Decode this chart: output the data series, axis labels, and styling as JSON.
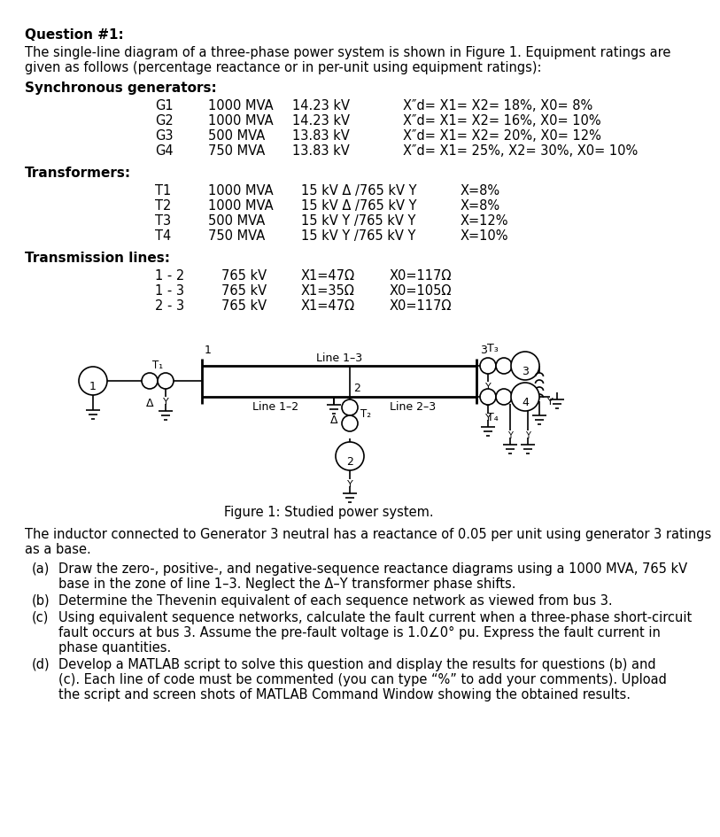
{
  "title": "Question #1:",
  "intro_line1": "The single-line diagram of a three-phase power system is shown in Figure 1. Equipment ratings are",
  "intro_line2": "given as follows (percentage reactance or in per-unit using equipment ratings):",
  "gen_header": "Synchronous generators:",
  "generators": [
    {
      "id": "G1",
      "mva": "1000 MVA",
      "kv": "14.23 kV",
      "params": "X″d= X1= X2= 18%, X0= 8%"
    },
    {
      "id": "G2",
      "mva": "1000 MVA",
      "kv": "14.23 kV",
      "params": "X″d= X1= X2= 16%, X0= 10%"
    },
    {
      "id": "G3",
      "mva": "500 MVA",
      "kv": "13.83 kV",
      "params": "X″d= X1= X2= 20%, X0= 12%"
    },
    {
      "id": "G4",
      "mva": "750 MVA",
      "kv": "13.83 kV",
      "params": "X″d= X1= 25%, X2= 30%, X0= 10%"
    }
  ],
  "trans_header": "Transformers:",
  "transformers": [
    {
      "id": "T1",
      "mva": "1000 MVA",
      "config": "15 kV Δ /765 kV Y",
      "params": "X=8%"
    },
    {
      "id": "T2",
      "mva": "1000 MVA",
      "config": "15 kV Δ /765 kV Y",
      "params": "X=8%"
    },
    {
      "id": "T3",
      "mva": "500 MVA",
      "config": "15 kV Y /765 kV Y",
      "params": "X=12%"
    },
    {
      "id": "T4",
      "mva": "750 MVA",
      "config": "15 kV Y /765 kV Y",
      "params": "X=10%"
    }
  ],
  "line_header": "Transmission lines:",
  "lines": [
    {
      "id": "1 - 2",
      "kv": "765 kV",
      "x1": "X1=47Ω",
      "x0": "X0=117Ω"
    },
    {
      "id": "1 - 3",
      "kv": "765 kV",
      "x1": "X1=35Ω",
      "x0": "X0=105Ω"
    },
    {
      "id": "2 - 3",
      "kv": "765 kV",
      "x1": "X1=47Ω",
      "x0": "X0=117Ω"
    }
  ],
  "figure_caption": "Figure 1: Studied power system.",
  "inductor_text1": "The inductor connected to Generator 3 neutral has a reactance of 0.05 per unit using generator 3 ratings",
  "inductor_text2": "as a base.",
  "questions": [
    [
      "(a)",
      "Draw the zero-, positive-, and negative-sequence reactance diagrams using a 1000 MVA, 765 kV",
      "base in the zone of line 1–3. Neglect the Δ–Y transformer phase shifts."
    ],
    [
      "(b)",
      "Determine the Thevenin equivalent of each sequence network as viewed from bus 3.",
      ""
    ],
    [
      "(c)",
      "Using equivalent sequence networks, calculate the fault current when a three-phase short-circuit",
      "fault occurs at bus 3. Assume the pre-fault voltage is 1.0∠0° pu. Express the fault current in",
      "phase quantities."
    ],
    [
      "(d)",
      "Develop a MATLAB script to solve this question and display the results for questions (b) and",
      "(c). Each line of code must be commented (you can type “%” to add your comments). Upload",
      "the script and screen shots of MATLAB Command Window showing the obtained results."
    ]
  ],
  "bg_color": "#ffffff",
  "text_color": "#000000"
}
